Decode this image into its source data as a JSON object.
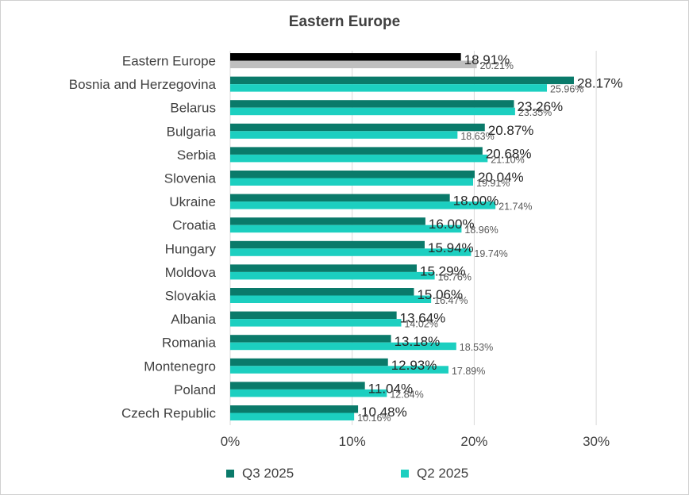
{
  "chart_data": {
    "type": "bar",
    "orientation": "horizontal",
    "title": "Eastern Europe",
    "categories": [
      "Eastern Europe",
      "Bosnia and Herzegovina",
      "Belarus",
      "Bulgaria",
      "Serbia",
      "Slovenia",
      "Ukraine",
      "Croatia",
      "Hungary",
      "Moldova",
      "Slovakia",
      "Albania",
      "Romania",
      "Montenegro",
      "Poland",
      "Czech Republic"
    ],
    "series": [
      {
        "name": "Q3 2025",
        "color": "#0a7a6a",
        "values": [
          18.91,
          28.17,
          23.26,
          20.87,
          20.68,
          20.04,
          18.0,
          16.0,
          15.94,
          15.29,
          15.06,
          13.64,
          13.18,
          12.93,
          11.04,
          10.48
        ],
        "labels": [
          "18.91%",
          "28.17%",
          "23.26%",
          "20.87%",
          "20.68%",
          "20.04%",
          "18.00%",
          "16.00%",
          "15.94%",
          "15.29%",
          "15.06%",
          "13.64%",
          "13.18%",
          "12.93%",
          "11.04%",
          "10.48%"
        ]
      },
      {
        "name": "Q2 2025",
        "color": "#1ccfc0",
        "values": [
          20.21,
          25.96,
          23.35,
          18.63,
          21.1,
          19.91,
          21.74,
          18.96,
          19.74,
          16.76,
          16.47,
          14.02,
          18.53,
          17.89,
          12.84,
          10.16
        ],
        "labels": [
          "20.21%",
          "25.96%",
          "23.35%",
          "18.63%",
          "21.10%",
          "19.91%",
          "21.74%",
          "18.96%",
          "19.74%",
          "16.76%",
          "16.47%",
          "14.02%",
          "18.53%",
          "17.89%",
          "12.84%",
          "10.16%"
        ]
      }
    ],
    "highlight_colors": {
      "q3": "#000000",
      "q2": "#bfbfbf"
    },
    "xlim": [
      0,
      30
    ],
    "xticks": [
      0,
      10,
      20,
      30
    ],
    "xtick_labels": [
      "0%",
      "10%",
      "20%",
      "30%"
    ],
    "grid": "vertical",
    "legend": "bottom"
  }
}
